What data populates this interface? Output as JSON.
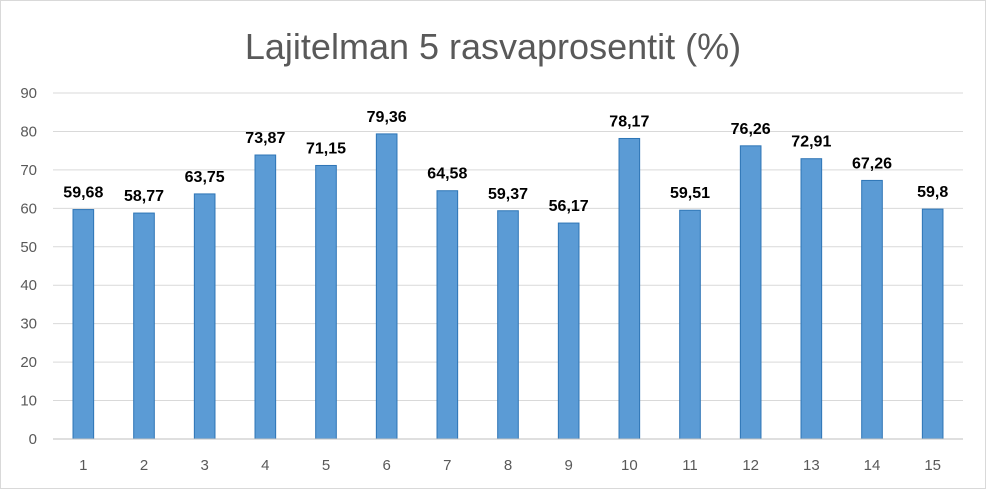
{
  "chart_data": {
    "type": "bar",
    "title": "Lajitelman 5 rasvaprosentit (%)",
    "xlabel": "",
    "ylabel": "",
    "categories": [
      "1",
      "2",
      "3",
      "4",
      "5",
      "6",
      "7",
      "8",
      "9",
      "10",
      "11",
      "12",
      "13",
      "14",
      "15"
    ],
    "values": [
      59.68,
      58.77,
      63.75,
      73.87,
      71.15,
      79.36,
      64.58,
      59.37,
      56.17,
      78.17,
      59.51,
      76.26,
      72.91,
      67.26,
      59.8
    ],
    "data_labels": [
      "59,68",
      "58,77",
      "63,75",
      "73,87",
      "71,15",
      "79,36",
      "64,58",
      "59,37",
      "56,17",
      "78,17",
      "59,51",
      "76,26",
      "72,91",
      "67,26",
      "59,8"
    ],
    "ylim": [
      0,
      90
    ],
    "yticks": [
      "0",
      "10",
      "20",
      "30",
      "40",
      "50",
      "60",
      "70",
      "80",
      "90"
    ],
    "grid": true,
    "legend": "none",
    "colors": {
      "bar_fill": "#5B9BD5",
      "bar_stroke": "#2E75B6"
    }
  }
}
